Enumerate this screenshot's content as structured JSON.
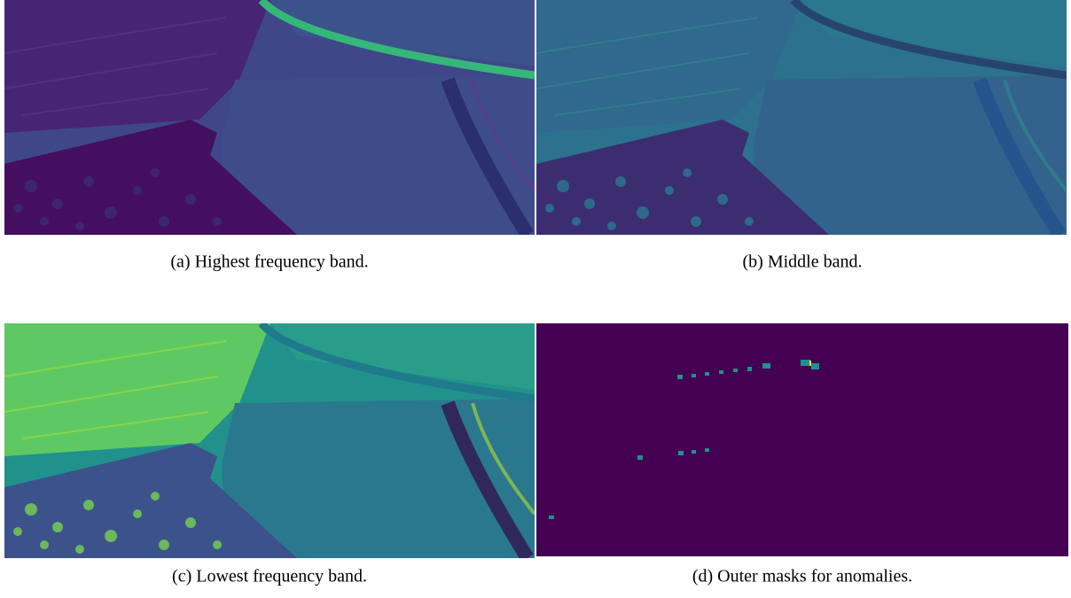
{
  "figures": [
    {
      "caption": "(a) Highest frequency band."
    },
    {
      "caption": "(b) Middle band."
    },
    {
      "caption": "(c) Lowest frequency band."
    },
    {
      "caption": "(d) Outer masks for anomalies."
    }
  ]
}
